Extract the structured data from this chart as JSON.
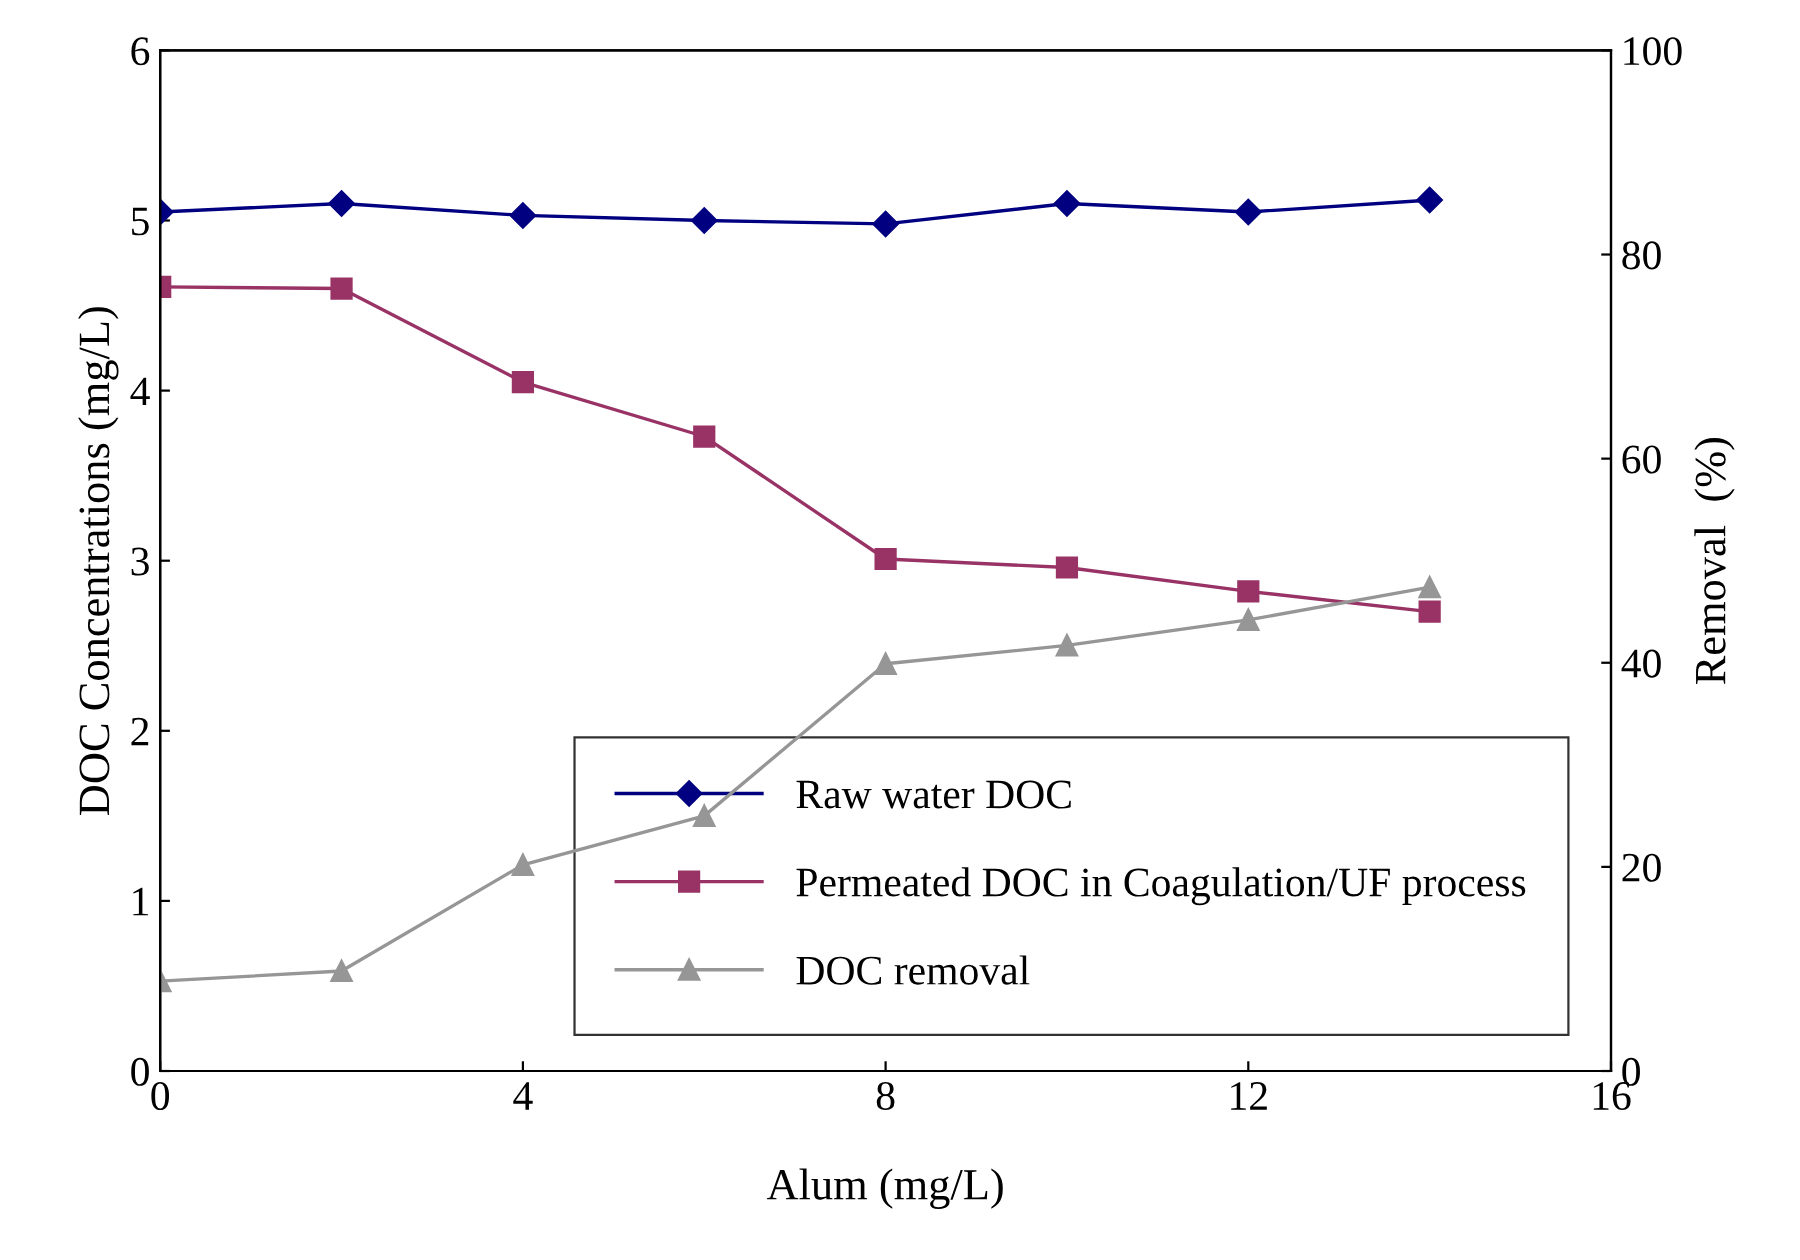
{
  "chart_data": {
    "type": "line",
    "xlabel": "Alum (mg/L)",
    "ylabel": "DOC Concentrations (mg/L)",
    "y2label": "Removal  (%)",
    "x": [
      0,
      2,
      4,
      6,
      8,
      10,
      12,
      14
    ],
    "series": [
      {
        "name": "Raw water DOC",
        "color": "#000080",
        "marker": "diamond",
        "values": [
          5.05,
          5.1,
          5.03,
          5.0,
          4.98,
          5.1,
          5.05,
          5.12
        ]
      },
      {
        "name": "Permeated DOC in Coagulation/UF process",
        "color": "#993366",
        "marker": "square",
        "values": [
          4.61,
          4.6,
          4.05,
          3.73,
          3.01,
          2.96,
          2.82,
          2.7
        ]
      },
      {
        "name": "DOC removal",
        "color": "#969696",
        "marker": "triangle",
        "axis": "y2",
        "values": [
          8.8,
          9.8,
          20.2,
          25.0,
          39.9,
          41.7,
          44.2,
          47.4
        ]
      }
    ],
    "xlim": [
      0,
      16
    ],
    "xticks": [
      0,
      4,
      8,
      12,
      16
    ],
    "ylim": [
      0,
      6
    ],
    "yticks": [
      0,
      1,
      2,
      3,
      4,
      5,
      6
    ],
    "y2lim": [
      0,
      100
    ],
    "y2ticks": [
      0,
      20,
      40,
      60,
      80,
      100
    ],
    "grid": false,
    "legend": "bottom right"
  }
}
